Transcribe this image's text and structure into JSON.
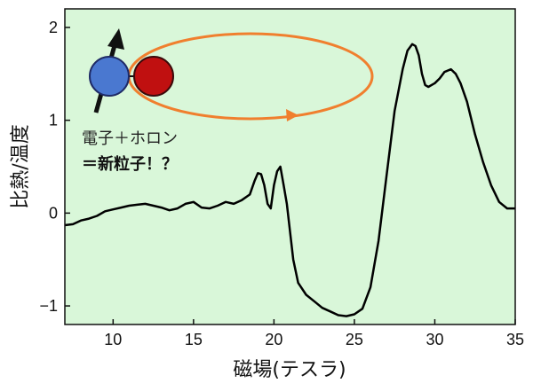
{
  "chart_data": {
    "type": "line",
    "xlabel": "磁場(テスラ)",
    "ylabel": "比熱/温度",
    "xlim": [
      7,
      35
    ],
    "ylim": [
      -1.2,
      2.2
    ],
    "x_ticks": [
      10,
      15,
      20,
      25,
      30,
      35
    ],
    "x_tick_labels": [
      "10",
      "15",
      "20",
      "25",
      "30",
      "35"
    ],
    "y_ticks": [
      -1,
      0,
      1,
      2
    ],
    "y_tick_labels": [
      "−1",
      "0",
      "1",
      "2"
    ],
    "grid": false,
    "colors": {
      "plot_background": "#d9f7d9",
      "line": "#000000",
      "orbit": "#f07f2e",
      "particle_left": "#4a78d0",
      "particle_right": "#c01010"
    },
    "series": [
      {
        "x": [
          7.0,
          7.5,
          8.0,
          8.5,
          9.0,
          9.5,
          10.0,
          10.5,
          11.0,
          11.5,
          12.0,
          12.5,
          13.0,
          13.5,
          14.0,
          14.5,
          15.0,
          15.5,
          16.0,
          16.5,
          17.0,
          17.5,
          18.0,
          18.5,
          18.8,
          19.0,
          19.2,
          19.4,
          19.6,
          19.8,
          20.0,
          20.2,
          20.4,
          20.6,
          20.8,
          21.0,
          21.2,
          21.5,
          22.0,
          22.5,
          23.0,
          23.5,
          24.0,
          24.5,
          25.0,
          25.5,
          26.0,
          26.5,
          27.0,
          27.5,
          28.0,
          28.3,
          28.6,
          28.8,
          29.0,
          29.2,
          29.4,
          29.6,
          29.8,
          30.0,
          30.3,
          30.6,
          31.0,
          31.3,
          31.6,
          32.0,
          32.5,
          33.0,
          33.5,
          34.0,
          34.5,
          35.0
        ],
        "y": [
          -0.13,
          -0.12,
          -0.08,
          -0.06,
          -0.03,
          0.02,
          0.04,
          0.06,
          0.08,
          0.09,
          0.1,
          0.08,
          0.06,
          0.03,
          0.05,
          0.1,
          0.12,
          0.06,
          0.05,
          0.08,
          0.12,
          0.1,
          0.14,
          0.2,
          0.35,
          0.43,
          0.42,
          0.3,
          0.1,
          0.05,
          0.3,
          0.45,
          0.5,
          0.3,
          0.1,
          -0.2,
          -0.5,
          -0.75,
          -0.88,
          -0.95,
          -1.02,
          -1.06,
          -1.1,
          -1.11,
          -1.09,
          -1.03,
          -0.8,
          -0.3,
          0.4,
          1.1,
          1.55,
          1.75,
          1.82,
          1.8,
          1.7,
          1.5,
          1.38,
          1.36,
          1.38,
          1.4,
          1.45,
          1.52,
          1.55,
          1.5,
          1.4,
          1.2,
          0.85,
          0.55,
          0.3,
          0.12,
          0.05,
          0.05
        ]
      }
    ],
    "annotations": {
      "line1": "電子＋ホロン",
      "line2": "＝新粒子！？"
    }
  }
}
